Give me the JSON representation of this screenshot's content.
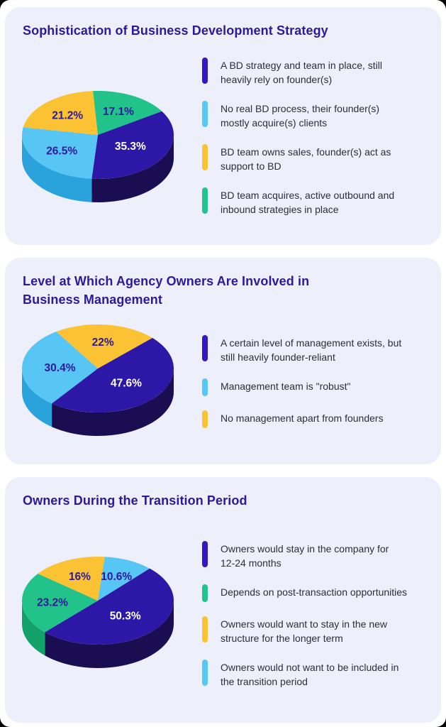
{
  "page": {
    "background": "#000000",
    "surface": "#ffffff",
    "card_background": "#edeffb",
    "title_color": "#2e189b",
    "text_color": "#2b2e36"
  },
  "palette": {
    "indigo": {
      "top": "#2c17a6",
      "side": "#1a0d52",
      "marker": "#3417c2",
      "label": "#ffffff"
    },
    "blue": {
      "top": "#57c6f4",
      "side": "#2aa2dc",
      "marker": "#55c8f7",
      "label": "#2e189b"
    },
    "yellow": {
      "top": "#fbc233",
      "side": "#d99e18",
      "marker": "#fbc233",
      "label": "#2e189b"
    },
    "green": {
      "top": "#21c38b",
      "side": "#12a169",
      "marker": "#21c48c",
      "label": "#2e189b"
    }
  },
  "chart_data": [
    {
      "type": "pie",
      "style": "3d",
      "title": "Sophistication of Business Development Strategy",
      "start_angle": -94,
      "slices": [
        {
          "color": "green",
          "value": 17.1,
          "pct_label": "17.1%",
          "label": "BD team acquires, active outbound and\ninbound strategies in place"
        },
        {
          "color": "indigo",
          "value": 35.3,
          "pct_label": "35.3%",
          "label": "A BD strategy and team in place, still\nheavily rely on founder(s)"
        },
        {
          "color": "blue",
          "value": 26.5,
          "pct_label": "26.5%",
          "label": "No real BD process, their founder(s)\nmostly acquire(s) clients"
        },
        {
          "color": "yellow",
          "value": 21.2,
          "pct_label": "21.2%",
          "label": "BD team owns sales, founder(s) act as\nsupport to BD"
        }
      ],
      "legend_order": [
        1,
        2,
        3,
        0
      ]
    },
    {
      "type": "pie",
      "style": "3d",
      "title": "Level at Which Agency Owners Are Involved in\nBusiness Management",
      "start_angle": -44,
      "slices": [
        {
          "color": "indigo",
          "value": 47.6,
          "pct_label": "47.6%",
          "label": "A certain level of management exists, but\nstill heavily founder-reliant"
        },
        {
          "color": "blue",
          "value": 30.4,
          "pct_label": "30.4%",
          "label": "Management team is \"robust\""
        },
        {
          "color": "yellow",
          "value": 22.0,
          "pct_label": "22%",
          "label": "No management apart from founders"
        }
      ],
      "legend_order": [
        0,
        1,
        2
      ]
    },
    {
      "type": "pie",
      "style": "3d",
      "title": "Owners During the Transition Period",
      "start_angle": -85,
      "slices": [
        {
          "color": "blue",
          "value": 10.6,
          "pct_label": "10.6%",
          "label": "Owners would not want to be included in\nthe transition period"
        },
        {
          "color": "indigo",
          "value": 50.3,
          "pct_label": "50.3%",
          "label": "Owners would stay in the company for\n12-24 months"
        },
        {
          "color": "green",
          "value": 23.2,
          "pct_label": "23.2%",
          "label": "Depends on post-transaction opportunities"
        },
        {
          "color": "yellow",
          "value": 16.0,
          "pct_label": "16%",
          "label": "Owners would want to stay in the new\nstructure for the longer term"
        }
      ],
      "legend_order": [
        1,
        2,
        3,
        0
      ]
    }
  ]
}
